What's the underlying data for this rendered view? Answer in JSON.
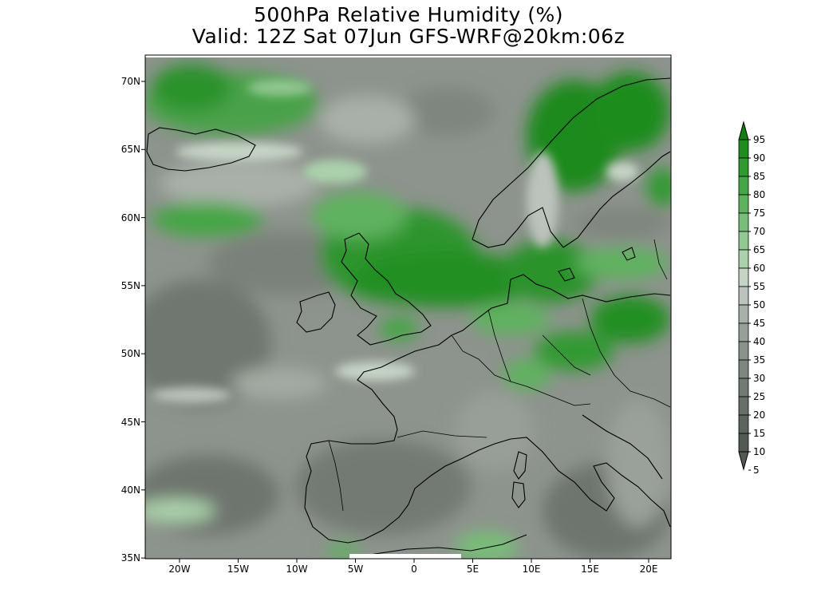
{
  "title": {
    "line1": "500hPa Relative Humidity (%)",
    "line2": "Valid: 12Z Sat 07Jun GFS-WRF@20km:06z"
  },
  "lat_labels": [
    "70N",
    "65N",
    "60N",
    "55N",
    "50N",
    "45N",
    "40N",
    "35N"
  ],
  "lon_labels": [
    "20W",
    "15W",
    "10W",
    "5W",
    "0",
    "5E",
    "10E",
    "15E",
    "20E"
  ],
  "colorbar": {
    "levels": [
      "95",
      "90",
      "85",
      "80",
      "75",
      "70",
      "65",
      "60",
      "55",
      "50",
      "45",
      "40",
      "35",
      "30",
      "25",
      "20",
      "15",
      "10",
      "5"
    ],
    "colors": [
      "#108010",
      "#1f8c1f",
      "#309a30",
      "#45a645",
      "#5eb25e",
      "#78bd78",
      "#92c892",
      "#abd1ab",
      "#c6d4c6",
      "#bcc2bc",
      "#a9b0a9",
      "#989e98",
      "#8b918b",
      "#7f857f",
      "#737a73",
      "#686e68",
      "#5d645d",
      "#535a53"
    ]
  },
  "colors": {
    "coast": "#000000",
    "frame": "#000000"
  }
}
